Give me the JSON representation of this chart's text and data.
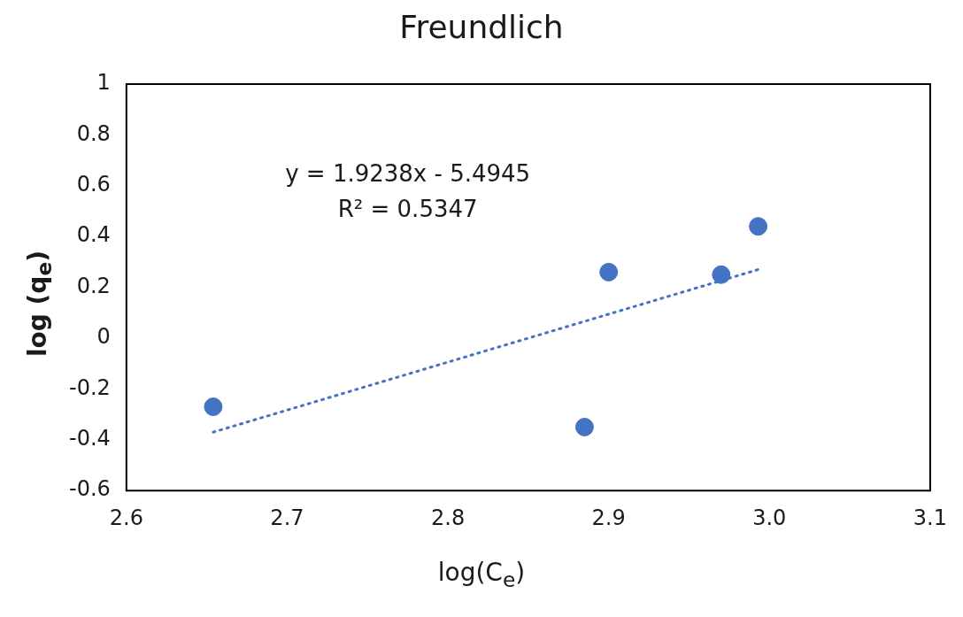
{
  "chart_data": {
    "type": "scatter",
    "title": "Freundlich",
    "xlabel": "log(C$_{e}$)",
    "ylabel": "log (q$_{e}$)",
    "x": [
      2.654,
      2.885,
      2.9,
      2.97,
      2.993
    ],
    "series": [
      {
        "color": "#4472c4",
        "values": [
          -0.27,
          -0.35,
          0.26,
          0.25,
          0.44
        ]
      },
      {
        "type": "line",
        "color": "#4472c4",
        "x": [
          2.654,
          2.993
        ],
        "values": [
          -0.37,
          0.27
        ],
        "line_style": "dotted",
        "marker": "none"
      }
    ],
    "marker": "circle",
    "annotations": [
      "y = 1.9238x - 5.4945",
      "R² = 0.5347"
    ],
    "xlim": [
      2.6,
      3.1
    ],
    "xticks": [
      2.6,
      2.7,
      2.8,
      2.9,
      {
        "value": 3,
        "label": "3.0"
      },
      3.1
    ],
    "ylim": [
      -0.6,
      1
    ],
    "yticks": [
      -0.6,
      -0.4,
      -0.2,
      0,
      0.2,
      0.4,
      0.6,
      0.8,
      1
    ],
    "grid": false,
    "legend": false
  }
}
